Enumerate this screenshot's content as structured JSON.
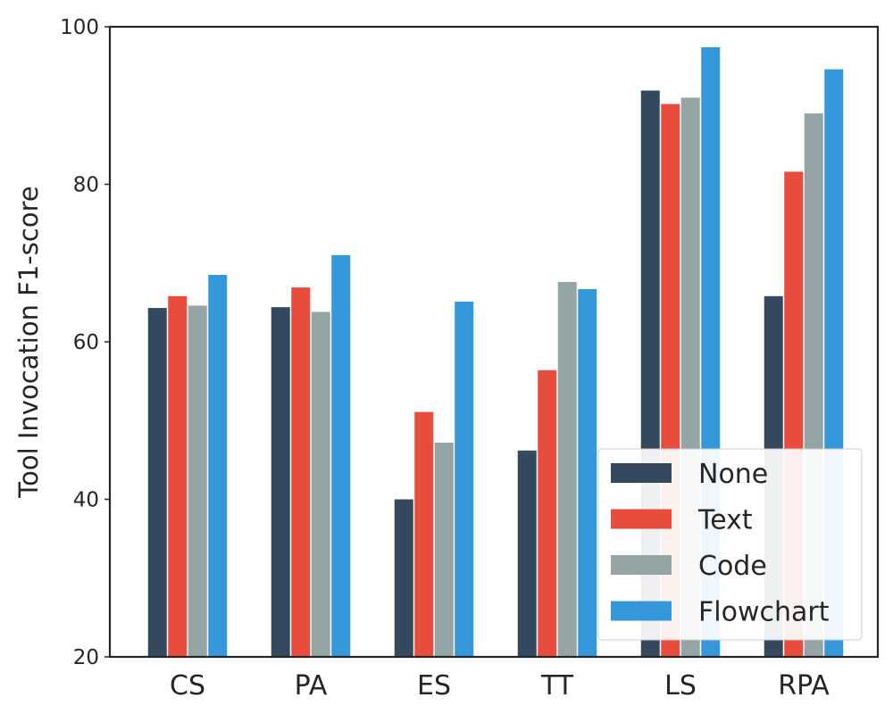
{
  "chart_data": {
    "type": "bar",
    "title": "",
    "xlabel": "",
    "ylabel": "Tool Invocation F1-score",
    "categories": [
      "CS",
      "PA",
      "ES",
      "TT",
      "LS",
      "RPA"
    ],
    "series": [
      {
        "name": "None",
        "color": "#34495e",
        "values": [
          64.3,
          64.4,
          40.0,
          46.2,
          91.9,
          65.8
        ]
      },
      {
        "name": "Text",
        "color": "#e74c3c",
        "values": [
          65.8,
          66.9,
          51.1,
          56.4,
          90.2,
          81.6
        ]
      },
      {
        "name": "Code",
        "color": "#95a5a6",
        "values": [
          64.6,
          63.8,
          47.2,
          67.6,
          91.0,
          89.0
        ]
      },
      {
        "name": "Flowchart",
        "color": "#3498db",
        "values": [
          68.5,
          71.0,
          65.1,
          66.7,
          97.4,
          94.6
        ]
      }
    ],
    "ylim": [
      20,
      100
    ],
    "yticks": [
      20,
      40,
      60,
      80,
      100
    ],
    "grid": false,
    "legend_position": "lower-right"
  }
}
